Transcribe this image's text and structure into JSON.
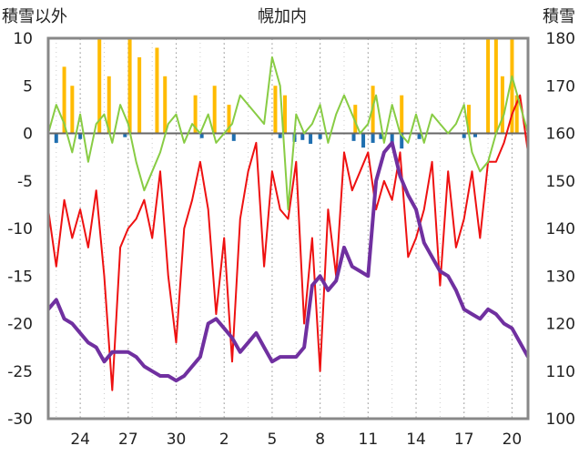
{
  "chart_data": {
    "type": "line",
    "title": "幌加内",
    "ylabel_left": "積雪以外",
    "ylabel_right": "積雪",
    "x_ticks": [
      "24",
      "27",
      "30",
      "2",
      "5",
      "8",
      "11",
      "14",
      "17",
      "20"
    ],
    "y_left": {
      "min": -30,
      "max": 10,
      "ticks": [
        10,
        5,
        0,
        -5,
        -10,
        -15,
        -20,
        -25,
        -30
      ]
    },
    "y_right": {
      "min": 100,
      "max": 180,
      "ticks": [
        180,
        170,
        160,
        150,
        140,
        130,
        120,
        110,
        100
      ]
    },
    "x_range": [
      22,
      52
    ],
    "grid": {
      "vertical": "dotted",
      "horizontal": "none"
    },
    "colors": {
      "temperature": "#ee1111",
      "wind": "#88cc44",
      "sunshine": "#ffbb00",
      "precip": "#1f6fb0",
      "snow_depth": "#7030a0"
    },
    "series": [
      {
        "key": "temperature",
        "axis": "left",
        "x": [
          22,
          22.5,
          23,
          23.5,
          24,
          24.5,
          25,
          25.5,
          26,
          26.5,
          27,
          27.5,
          28,
          28.5,
          29,
          29.5,
          30,
          30.5,
          31,
          31.5,
          32,
          32.5,
          33,
          33.5,
          34,
          34.5,
          35,
          35.5,
          36,
          36.5,
          37,
          37.5,
          38,
          38.5,
          39,
          39.5,
          40,
          40.5,
          41,
          41.5,
          42,
          42.5,
          43,
          43.5,
          44,
          44.5,
          45,
          45.5,
          46,
          46.5,
          47,
          47.5,
          48,
          48.5,
          49,
          49.5,
          50,
          50.5,
          51,
          51.5,
          52
        ],
        "values": [
          -8,
          -14,
          -7,
          -11,
          -8,
          -12,
          -6,
          -15,
          -27,
          -12,
          -10,
          -9,
          -7,
          -11,
          -4,
          -15,
          -22,
          -10,
          -7,
          -3,
          -8,
          -19,
          -11,
          -24,
          -9,
          -4,
          -1,
          -14,
          -4,
          -8,
          -9,
          -3,
          -20,
          -11,
          -25,
          -8,
          -15,
          -2,
          -6,
          -4,
          -2,
          -8,
          -5,
          -7,
          -2,
          -13,
          -11,
          -8,
          -3,
          -16,
          -4,
          -12,
          -9,
          -4,
          -11,
          -3,
          -3,
          -1,
          2,
          4,
          -2
        ]
      },
      {
        "key": "wind",
        "axis": "left",
        "x": [
          22,
          22.5,
          23,
          23.5,
          24,
          24.5,
          25,
          25.5,
          26,
          26.5,
          27,
          27.5,
          28,
          28.5,
          29,
          29.5,
          30,
          30.5,
          31,
          31.5,
          32,
          32.5,
          33,
          33.5,
          34,
          34.5,
          35,
          35.5,
          36,
          36.5,
          37,
          37.5,
          38,
          38.5,
          39,
          39.5,
          40,
          40.5,
          41,
          41.5,
          42,
          42.5,
          43,
          43.5,
          44,
          44.5,
          45,
          45.5,
          46,
          46.5,
          47,
          47.5,
          48,
          48.5,
          49,
          49.5,
          50,
          50.5,
          51,
          51.5,
          52
        ],
        "values": [
          0,
          3,
          1,
          -2,
          2,
          -3,
          1,
          2,
          -1,
          3,
          1,
          -3,
          -6,
          -4,
          -2,
          1,
          2,
          -1,
          1,
          0,
          2,
          -1,
          0,
          1,
          4,
          3,
          2,
          1,
          8,
          5,
          -8,
          2,
          0,
          1,
          3,
          -1,
          2,
          4,
          2,
          0,
          1,
          4,
          -1,
          3,
          0,
          -1,
          2,
          -1,
          2,
          1,
          0,
          1,
          3,
          -2,
          -4,
          -3,
          0,
          2,
          6,
          3,
          0
        ]
      },
      {
        "key": "snow_depth",
        "axis": "right",
        "x": [
          22,
          22.5,
          23,
          23.5,
          24,
          24.5,
          25,
          25.5,
          26,
          26.5,
          27,
          27.5,
          28,
          28.5,
          29,
          29.5,
          30,
          30.5,
          31,
          31.5,
          32,
          32.5,
          33,
          33.5,
          34,
          34.5,
          35,
          35.5,
          36,
          36.5,
          37,
          37.5,
          38,
          38.5,
          39,
          39.5,
          40,
          40.5,
          41,
          41.5,
          42,
          42.5,
          43,
          43.5,
          44,
          44.5,
          45,
          45.5,
          46,
          46.5,
          47,
          47.5,
          48,
          48.5,
          49,
          49.5,
          50,
          50.5,
          51,
          51.5,
          52
        ],
        "values": [
          123,
          125,
          121,
          120,
          118,
          116,
          115,
          112,
          114,
          114,
          114,
          113,
          111,
          110,
          109,
          109,
          108,
          109,
          111,
          113,
          120,
          121,
          119,
          117,
          114,
          116,
          118,
          115,
          112,
          113,
          113,
          113,
          115,
          128,
          130,
          127,
          129,
          136,
          132,
          131,
          130,
          150,
          156,
          158,
          151,
          147,
          144,
          137,
          134,
          131,
          130,
          127,
          123,
          122,
          121,
          123,
          122,
          120,
          119,
          116,
          113
        ]
      }
    ],
    "bars": [
      {
        "key": "sunshine",
        "axis": "left",
        "x": [
          23,
          23.5,
          25.2,
          25.8,
          27.1,
          27.7,
          28.8,
          29.3,
          31.2,
          32.4,
          33.3,
          36.2,
          36.8,
          41.2,
          42.3,
          44.1,
          48.3,
          49.5,
          50,
          50.4,
          51,
          51.3
        ],
        "values": [
          7,
          5,
          10,
          6,
          10,
          8,
          9,
          6,
          4,
          5,
          3,
          5,
          4,
          3,
          5,
          4,
          3,
          10,
          10,
          6,
          10,
          4
        ]
      },
      {
        "key": "precip",
        "axis": "left",
        "x": [
          22.5,
          24,
          26.8,
          31.6,
          33.6,
          36.5,
          37.4,
          37.9,
          38.4,
          39,
          41.1,
          41.7,
          42.3,
          42.8,
          43.5,
          44.1,
          45.2,
          48,
          48.7
        ],
        "values": [
          -1,
          -0.6,
          -0.4,
          -0.5,
          -0.8,
          -0.5,
          -0.9,
          -0.7,
          -1.1,
          -0.6,
          -0.8,
          -1.5,
          -1,
          -0.6,
          -1,
          -1.6,
          -0.6,
          -0.5,
          -0.4
        ]
      }
    ]
  }
}
